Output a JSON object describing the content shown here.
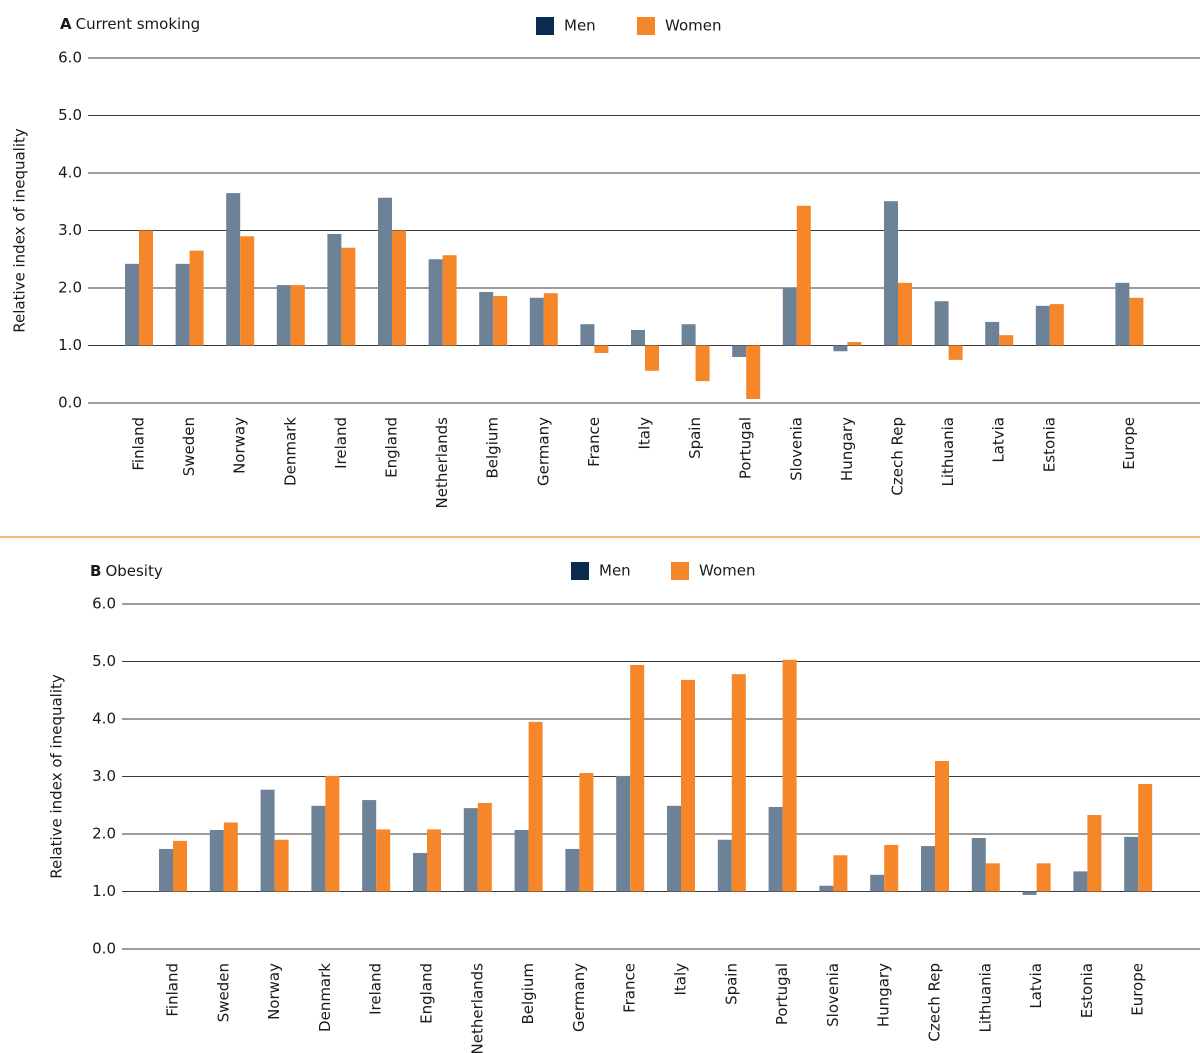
{
  "chart_data": [
    {
      "type": "bar",
      "panel": "A",
      "title": "Current smoking",
      "ylabel": "Relative index of inequality",
      "baseline": 1.0,
      "categories": [
        "Finland",
        "Sweden",
        "Norway",
        "Denmark",
        "Ireland",
        "England",
        "Netherlands",
        "Belgium",
        "Germany",
        "France",
        "Italy",
        "Spain",
        "Portugal",
        "Slovenia",
        "Hungary",
        "Czech Rep",
        "Lithuania",
        "Latvia",
        "Estonia",
        "Europe"
      ],
      "series": [
        {
          "name": "Men",
          "color": "#6d8297",
          "legend_color": "#0b2c4e",
          "values": [
            2.42,
            2.42,
            3.65,
            2.05,
            2.94,
            3.57,
            2.5,
            1.93,
            1.83,
            1.37,
            1.27,
            1.37,
            0.8,
            2.0,
            0.9,
            3.51,
            1.77,
            1.41,
            1.69,
            2.09
          ]
        },
        {
          "name": "Women",
          "color": "#f5862a",
          "legend_color": "#f5862a",
          "values": [
            3.0,
            2.65,
            2.9,
            2.05,
            2.7,
            3.0,
            2.57,
            1.86,
            1.91,
            0.87,
            0.56,
            0.38,
            0.07,
            3.43,
            1.06,
            2.09,
            0.75,
            1.18,
            1.72,
            1.83
          ]
        }
      ],
      "ylim": [
        0,
        6
      ],
      "yticks": [
        {
          "value": 0,
          "label": "0.0"
        },
        {
          "value": 1,
          "label": "1.0"
        },
        {
          "value": 2,
          "label": "2.0"
        },
        {
          "value": 3,
          "label": "3.0"
        },
        {
          "value": 4,
          "label": "4.0"
        },
        {
          "value": 5,
          "label": "5.0"
        },
        {
          "value": 6,
          "label": "6.0"
        }
      ],
      "grid": true
    },
    {
      "type": "bar",
      "panel": "B",
      "title": "Obesity",
      "ylabel": "Relative index of inequality",
      "baseline": 1.0,
      "categories": [
        "Finland",
        "Sweden",
        "Norway",
        "Denmark",
        "Ireland",
        "England",
        "Netherlands",
        "Belgium",
        "Germany",
        "France",
        "Italy",
        "Spain",
        "Portugal",
        "Slovenia",
        "Hungary",
        "Czech Rep",
        "Lithuania",
        "Latvia",
        "Estonia",
        "Europe"
      ],
      "series": [
        {
          "name": "Men",
          "color": "#6d8297",
          "legend_color": "#0b2c4e",
          "values": [
            1.74,
            2.07,
            2.77,
            2.49,
            2.59,
            1.67,
            2.45,
            2.07,
            1.74,
            3.01,
            2.49,
            1.9,
            2.47,
            1.1,
            1.29,
            1.79,
            1.93,
            0.94,
            1.35,
            1.95
          ]
        },
        {
          "name": "Women",
          "color": "#f5862a",
          "legend_color": "#f5862a",
          "values": [
            1.88,
            2.2,
            1.9,
            3.01,
            2.08,
            2.08,
            2.54,
            3.95,
            3.06,
            4.94,
            4.68,
            4.78,
            5.03,
            1.63,
            1.81,
            3.27,
            1.49,
            1.49,
            2.33,
            2.87
          ]
        }
      ],
      "ylim": [
        0,
        6
      ],
      "yticks": [
        {
          "value": 0,
          "label": "0.0"
        },
        {
          "value": 1,
          "label": "1.0"
        },
        {
          "value": 2,
          "label": "2.0"
        },
        {
          "value": 3,
          "label": "3.0"
        },
        {
          "value": 4,
          "label": "4.0"
        },
        {
          "value": 5,
          "label": "5.0"
        },
        {
          "value": 6,
          "label": "6.0"
        }
      ],
      "grid": true
    }
  ]
}
